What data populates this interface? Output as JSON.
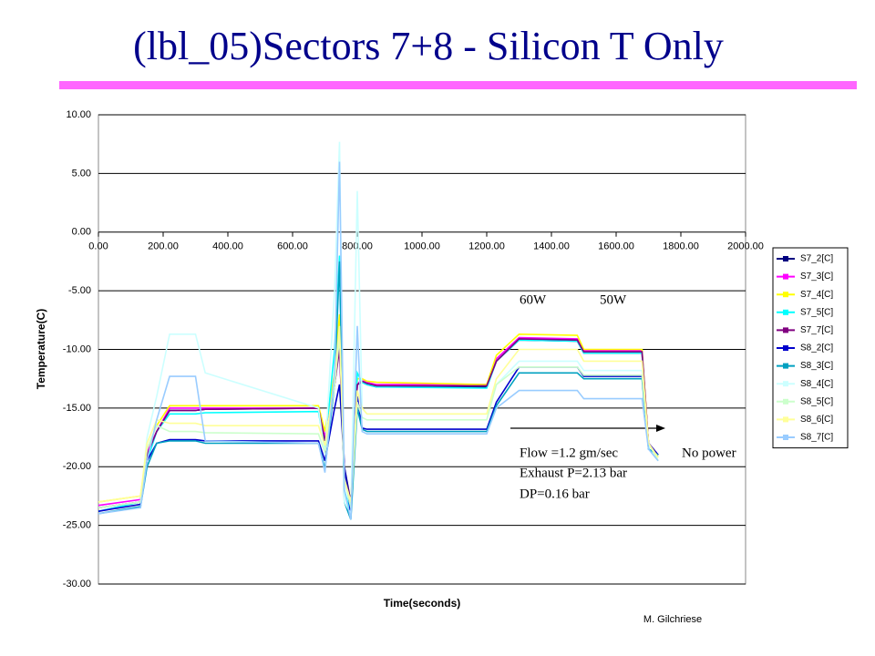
{
  "chart_data": {
    "type": "line",
    "title": "(lbl_05)Sectors 7+8 - Silicon T Only",
    "xlabel": "Time(seconds)",
    "ylabel": "Temperature(C)",
    "footer": "M. Gilchriese",
    "annotations": [
      "60W",
      "50W",
      "Flow =1.2 gm/sec",
      "Exhaust P=2.13 bar",
      "DP=0.16 bar",
      "No power"
    ],
    "legend": "right",
    "grid": true,
    "xlim": [
      0,
      2000
    ],
    "ylim": [
      -30,
      10
    ],
    "xticks": [
      {
        "value": 0,
        "label": "0.00"
      },
      {
        "value": 200,
        "label": "200.00"
      },
      {
        "value": 400,
        "label": "400.00"
      },
      {
        "value": 600,
        "label": "600.00"
      },
      {
        "value": 800,
        "label": "800.00"
      },
      {
        "value": 1000,
        "label": "1000.00"
      },
      {
        "value": 1200,
        "label": "1200.00"
      },
      {
        "value": 1400,
        "label": "1400.00"
      },
      {
        "value": 1600,
        "label": "1600.00"
      },
      {
        "value": 1800,
        "label": "1800.00"
      },
      {
        "value": 2000,
        "label": "2000.00"
      }
    ],
    "yticks": [
      {
        "value": 10,
        "label": "10.00"
      },
      {
        "value": 5,
        "label": "5.00"
      },
      {
        "value": 0,
        "label": "0.00"
      },
      {
        "value": -5,
        "label": "-5.00"
      },
      {
        "value": -10,
        "label": "-10.00"
      },
      {
        "value": -15,
        "label": "-15.00"
      },
      {
        "value": -20,
        "label": "-20.00"
      },
      {
        "value": -25,
        "label": "-25.00"
      },
      {
        "value": -30,
        "label": "-30.00"
      }
    ],
    "x": [
      0,
      130,
      150,
      180,
      220,
      300,
      330,
      680,
      700,
      730,
      745,
      760,
      780,
      800,
      815,
      830,
      860,
      1200,
      1230,
      1300,
      1480,
      1500,
      1680,
      1700,
      1730
    ],
    "series": [
      {
        "name": "S7_2[C]",
        "color": "#000080",
        "values": [
          -23.5,
          -23,
          -19,
          -17,
          -15.2,
          -15.2,
          -15.1,
          -15,
          -17.8,
          -13,
          -9.5,
          -20,
          -23,
          -13,
          -12.8,
          -13,
          -13.2,
          -13.2,
          -11,
          -9.2,
          -9.3,
          -10.3,
          -10.3,
          -18,
          -19
        ]
      },
      {
        "name": "S7_3[C]",
        "color": "#ff00ff",
        "values": [
          -23.3,
          -22.8,
          -18.8,
          -17,
          -15,
          -15,
          -15,
          -15,
          -17.5,
          -12.5,
          -10,
          -20.5,
          -23.5,
          -13,
          -12.5,
          -12.8,
          -13,
          -13,
          -10.8,
          -9,
          -9.1,
          -10.1,
          -10.1,
          -18,
          -19
        ]
      },
      {
        "name": "S7_4[C]",
        "color": "#ffff00",
        "values": [
          -23,
          -22.5,
          -18.5,
          -16.5,
          -14.8,
          -14.8,
          -14.8,
          -14.8,
          -17,
          -12,
          -7,
          -21,
          -23,
          -12.5,
          -12.5,
          -12.7,
          -12.8,
          -13,
          -10.5,
          -8.7,
          -8.8,
          -10,
          -10,
          -18,
          -19.2
        ]
      },
      {
        "name": "S7_5[C]",
        "color": "#00ffff",
        "values": [
          -23.8,
          -23,
          -19.5,
          -17,
          -15.5,
          -15.5,
          -15.4,
          -15.3,
          -18.5,
          -10,
          -2,
          -22,
          -24,
          -12,
          -12.8,
          -13,
          -13.2,
          -13.3,
          -11,
          -9.2,
          -9.3,
          -10.3,
          -10.3,
          -18.5,
          -19
        ]
      },
      {
        "name": "S7_7[C]",
        "color": "#800080",
        "values": [
          -23.5,
          -23,
          -19,
          -17,
          -15.2,
          -15.2,
          -15.1,
          -15,
          -17.8,
          -13,
          -10,
          -20.5,
          -23,
          -13,
          -12.7,
          -12.9,
          -13.1,
          -13.1,
          -11,
          -9.1,
          -9.2,
          -10.2,
          -10.2,
          -18,
          -19
        ]
      },
      {
        "name": "S8_2[C]",
        "color": "#0000cc",
        "values": [
          -23.8,
          -23.2,
          -19.5,
          -18,
          -17.7,
          -17.7,
          -17.8,
          -17.8,
          -19.5,
          -15,
          -13,
          -20,
          -24,
          -14,
          -16.7,
          -16.8,
          -16.8,
          -16.8,
          -14.5,
          -11.5,
          -11.5,
          -12.3,
          -12.3,
          -18,
          -19
        ]
      },
      {
        "name": "S8_3[C]",
        "color": "#00a0c0",
        "values": [
          -24,
          -23.4,
          -20,
          -18,
          -17.8,
          -17.8,
          -18,
          -18,
          -20.2,
          -13,
          -2.5,
          -23,
          -24.5,
          -15,
          -16.8,
          -17,
          -17,
          -17,
          -14.8,
          -12,
          -12,
          -12.5,
          -12.5,
          -18.5,
          -19
        ]
      },
      {
        "name": "S8_4[C]",
        "color": "#ccffff",
        "values": [
          -23.5,
          -23,
          -17.5,
          -14,
          -8.7,
          -8.7,
          -12,
          -15,
          -19,
          -5,
          7.7,
          -23,
          -24,
          3.5,
          -15,
          -15.5,
          -15.5,
          -15.5,
          -13,
          -11,
          -11,
          -11.8,
          -11.8,
          -18,
          -19.5
        ]
      },
      {
        "name": "S8_5[C]",
        "color": "#ccffcc",
        "values": [
          -23.5,
          -23,
          -18.5,
          -16.5,
          -17,
          -17,
          -17.1,
          -17.2,
          -18.8,
          -13,
          -9,
          -21,
          -23.5,
          -14.5,
          -15.8,
          -16,
          -16,
          -16,
          -13,
          -11.5,
          -11.5,
          -12.2,
          -12.2,
          -18,
          -19.5
        ]
      },
      {
        "name": "S8_6[C]",
        "color": "#ffff99",
        "values": [
          -23,
          -22.5,
          -18,
          -16,
          -16.3,
          -16.3,
          -16.5,
          -16.5,
          -18.2,
          -12.5,
          -8,
          -21,
          -23,
          -13.5,
          -15,
          -15.5,
          -15.5,
          -15.5,
          -12.5,
          -10,
          -10,
          -11,
          -11,
          -18,
          -19.2
        ]
      },
      {
        "name": "S8_7[C]",
        "color": "#99ccff",
        "values": [
          -24,
          -23.5,
          -19.5,
          -16,
          -12.3,
          -12.3,
          -17.8,
          -18,
          -20.5,
          -12,
          6,
          -22,
          -24.5,
          -8,
          -17,
          -17.2,
          -17.2,
          -17.2,
          -15,
          -13.5,
          -13.5,
          -14.2,
          -14.2,
          -18.5,
          -19.5
        ]
      }
    ]
  }
}
